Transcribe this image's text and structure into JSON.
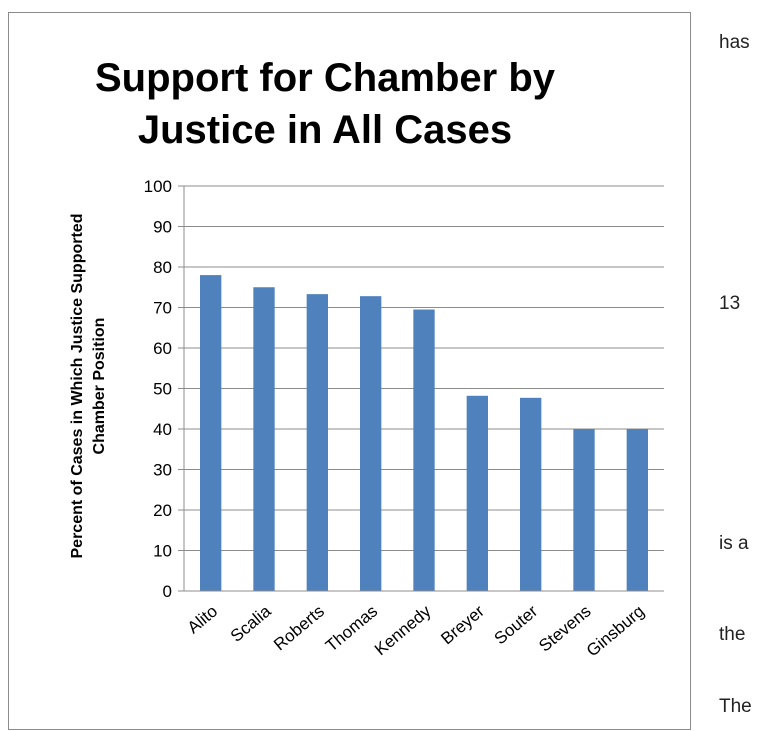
{
  "chart_data": {
    "type": "bar",
    "title_lines": [
      "Support for Chamber by",
      "Justice in All Cases"
    ],
    "ylabel_lines": [
      "Percent of Cases in Which Justice Supported",
      "Chamber Position"
    ],
    "xlabel": "",
    "categories": [
      "Alito",
      "Scalia",
      "Roberts",
      "Thomas",
      "Kennedy",
      "Breyer",
      "Souter",
      "Stevens",
      "Ginsburg"
    ],
    "values": [
      78,
      75,
      73.3,
      72.8,
      69.5,
      48.2,
      47.7,
      40,
      40
    ],
    "ylim": [
      0,
      100
    ],
    "yticks": [
      0,
      10,
      20,
      30,
      40,
      50,
      60,
      70,
      80,
      90,
      100
    ],
    "grid": true,
    "legend": "none",
    "bar_color": "#4f81bd"
  },
  "side_text": [
    "has",
    "13",
    "is a",
    "the",
    "The"
  ]
}
